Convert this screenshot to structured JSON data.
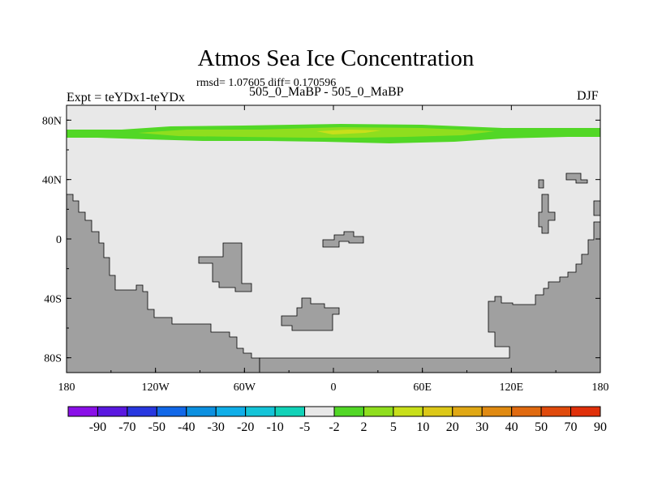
{
  "title": "Atmos Sea Ice Concentration",
  "stats": "rmsd= 1.07605 diff= 0.170596",
  "experiment": "Expt = teYDx1-teYDx",
  "subtitle": "505_0_MaBP - 505_0_MaBP",
  "season": "DJF",
  "colors": {
    "ocean": "#e8e8e8",
    "land": "#a0a0a0",
    "ice_low": "#52d726",
    "ice_mid": "#8fde1e",
    "ice_high": "#c8df1a"
  },
  "map": {
    "lon_range": [
      -180,
      180
    ],
    "lat_range": [
      -90,
      90
    ],
    "x_ticks": [
      "180",
      "120W",
      "60W",
      "0",
      "60E",
      "120E",
      "180"
    ],
    "y_ticks": [
      "80N",
      "40N",
      "0",
      "40S",
      "80S"
    ]
  },
  "colorbar": {
    "colors": [
      "#8a10e8",
      "#5a18e0",
      "#2838e0",
      "#1268e8",
      "#0c90e0",
      "#10aee8",
      "#14c4d8",
      "#12d2b8",
      "#e8e8e8",
      "#52d726",
      "#8fde1e",
      "#c8df1a",
      "#dcc818",
      "#e0a814",
      "#e08a12",
      "#e06a10",
      "#e04a0c",
      "#e0300a"
    ],
    "labels": [
      "-90",
      "-70",
      "-50",
      "-40",
      "-30",
      "-20",
      "-10",
      "-5",
      "-2",
      "2",
      "5",
      "10",
      "20",
      "30",
      "40",
      "50",
      "70",
      "90"
    ]
  }
}
